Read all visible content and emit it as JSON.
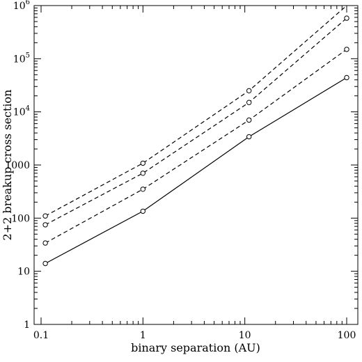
{
  "chart_data": {
    "type": "line",
    "title": "",
    "xlabel": "binary separation (AU)",
    "ylabel": "2+2 breakup cross section",
    "xscale": "log",
    "yscale": "log",
    "xlim": [
      0.1,
      125
    ],
    "ylim": [
      1,
      1000000
    ],
    "grid": false,
    "legend": "none",
    "x_ticks": [
      {
        "value": 0.1,
        "label": "0.1"
      },
      {
        "value": 1,
        "label": "1"
      },
      {
        "value": 10,
        "label": "10"
      },
      {
        "value": 100,
        "label": "100"
      }
    ],
    "y_ticks": [
      {
        "value": 1,
        "label": "1"
      },
      {
        "value": 10,
        "label": "10"
      },
      {
        "value": 100,
        "label": "100"
      },
      {
        "value": 1000,
        "label": "1000"
      },
      {
        "value": 10000,
        "label": "10",
        "exp": "4"
      },
      {
        "value": 100000,
        "label": "10",
        "exp": "5"
      },
      {
        "value": 1000000,
        "label": "10",
        "exp": "6"
      }
    ],
    "series": [
      {
        "style": "solid",
        "color": "#000000",
        "x": [
          0.11,
          1,
          11,
          100
        ],
        "y": [
          14,
          135,
          3400,
          44000
        ],
        "markers": [
          true,
          true,
          true,
          true
        ]
      },
      {
        "style": "dashed",
        "color": "#000000",
        "x": [
          0.11,
          1,
          11,
          100
        ],
        "y": [
          34,
          350,
          7000,
          150000
        ],
        "markers": [
          true,
          true,
          true,
          true
        ]
      },
      {
        "style": "dashed",
        "color": "#000000",
        "x": [
          0.11,
          1,
          11,
          100
        ],
        "y": [
          75,
          700,
          15000,
          580000
        ],
        "markers": [
          true,
          true,
          true,
          true
        ]
      },
      {
        "style": "dashed",
        "color": "#000000",
        "x": [
          0.11,
          1,
          11,
          100
        ],
        "y": [
          110,
          1080,
          25000,
          1000000
        ],
        "markers": [
          true,
          true,
          true,
          false
        ]
      }
    ]
  }
}
